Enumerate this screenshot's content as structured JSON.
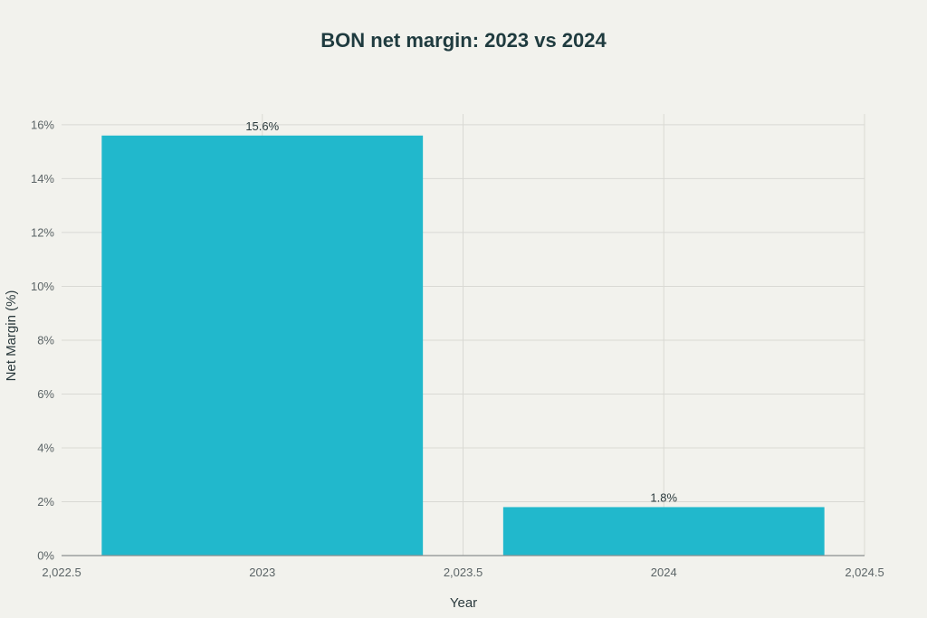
{
  "chart_data": {
    "type": "bar",
    "title": "BON net margin: 2023 vs 2024",
    "xlabel": "Year",
    "ylabel": "Net Margin (%)",
    "x": [
      2023,
      2024
    ],
    "values": [
      15.6,
      1.8
    ],
    "data_labels": [
      "15.6%",
      "1.8%"
    ],
    "bar_width": 0.8,
    "xlim": [
      2022.5,
      2024.5
    ],
    "ylim": [
      0,
      16.4
    ],
    "x_ticks": [
      2022.5,
      2023,
      2023.5,
      2024,
      2024.5
    ],
    "x_tick_labels": [
      "2,022.5",
      "2023",
      "2,023.5",
      "2024",
      "2,024.5"
    ],
    "y_ticks": [
      0,
      2,
      4,
      6,
      8,
      10,
      12,
      14,
      16
    ],
    "y_tick_labels": [
      "0%",
      "2%",
      "4%",
      "6%",
      "8%",
      "10%",
      "12%",
      "14%",
      "16%"
    ],
    "grid": true,
    "legend": "none",
    "colors": {
      "bar": "#21b8cc",
      "background": "#f2f2ed"
    }
  }
}
